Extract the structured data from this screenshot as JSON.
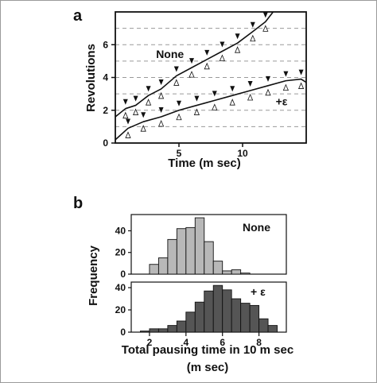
{
  "chart_data": [
    {
      "panel": "a",
      "type": "line",
      "xlabel": "Time (m sec)",
      "ylabel": "Revolutions",
      "xlim": [
        0,
        15
      ],
      "ylim": [
        0,
        8
      ],
      "x_ticks": [
        5,
        10
      ],
      "y_ticks": [
        0,
        2,
        4,
        6
      ],
      "grid": "dashed horizontal lines every 1 revolution",
      "series": [
        {
          "name": "None",
          "label_pos": [
            3.2,
            5.2
          ],
          "x": [
            0,
            0.8,
            1.6,
            2.6,
            3.6,
            4.8,
            6.0,
            7.2,
            8.4,
            9.6,
            10.8,
            11.8,
            12.4
          ],
          "y": [
            1.6,
            2.1,
            2.3,
            2.9,
            3.3,
            4.1,
            4.6,
            5.1,
            5.6,
            6.1,
            6.8,
            7.4,
            8.0
          ]
        },
        {
          "name": "+ε",
          "label_pos": [
            12.6,
            2.3
          ],
          "x": [
            0,
            1.0,
            2.2,
            3.6,
            5.0,
            6.4,
            7.8,
            9.2,
            10.6,
            12.0,
            13.4,
            14.6,
            15.0
          ],
          "y": [
            0.2,
            0.9,
            1.3,
            1.6,
            2.0,
            2.3,
            2.6,
            2.9,
            3.2,
            3.5,
            3.8,
            3.9,
            3.7
          ]
        }
      ]
    },
    {
      "panel": "b",
      "type": "bar",
      "xlabel_line1": "Total pausing time in 10 m sec",
      "xlabel_line2": "(m sec)",
      "ylabel": "Frequency",
      "x_range": [
        1,
        9.5
      ],
      "x_ticks": [
        2,
        4,
        6,
        8
      ],
      "bin_width": 0.5,
      "subplots": [
        {
          "name": "None",
          "color": "#b8b8b8",
          "ylim": [
            0,
            55
          ],
          "y_ticks": [
            0,
            20,
            40
          ],
          "bins": [
            2,
            2.5,
            3,
            3.5,
            4,
            4.5,
            5,
            5.5,
            6,
            6.5,
            7
          ],
          "values": [
            9,
            15,
            32,
            42,
            43,
            52,
            30,
            12,
            3,
            4,
            1
          ]
        },
        {
          "name": "+ ε",
          "color": "#555555",
          "ylim": [
            0,
            45
          ],
          "y_ticks": [
            0,
            20,
            40
          ],
          "bins": [
            1.5,
            2,
            2.5,
            3,
            3.5,
            4,
            4.5,
            5,
            5.5,
            6,
            6.5,
            7,
            7.5,
            8,
            8.5
          ],
          "values": [
            1,
            3,
            3,
            6,
            10,
            18,
            27,
            37,
            42,
            38,
            30,
            26,
            24,
            12,
            6
          ]
        }
      ]
    }
  ],
  "labels": {
    "panel_a": "a",
    "panel_b": "b"
  }
}
